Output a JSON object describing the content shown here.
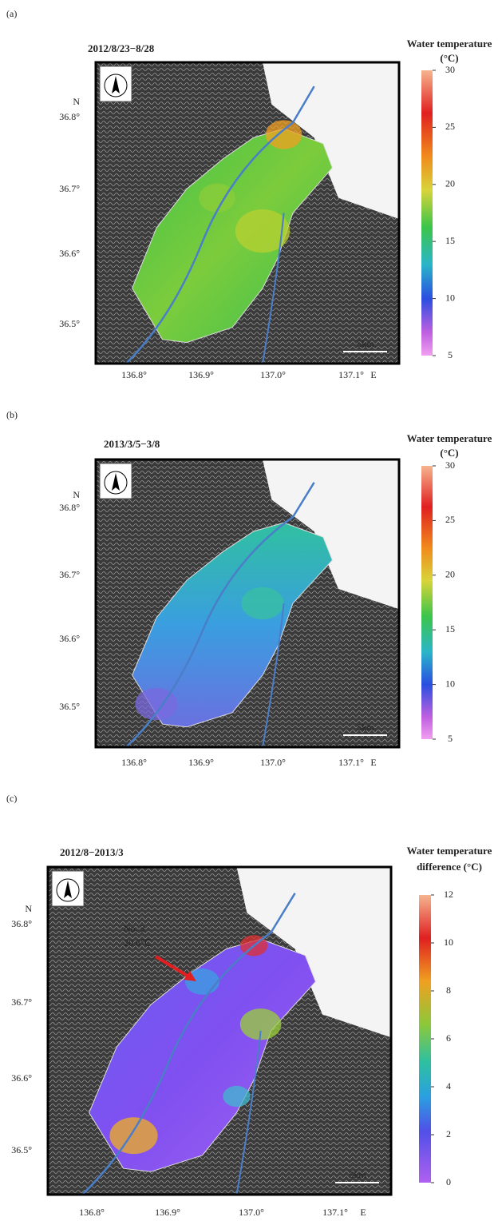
{
  "panels": [
    {
      "label": "(a)",
      "title": "2012/8/23−8/28",
      "colorbar": {
        "title": [
          "Water temperature",
          "(°C)"
        ],
        "range": [
          5,
          30
        ],
        "ticks": [
          5,
          10,
          15,
          20,
          25,
          30
        ]
      },
      "lat_labels": [
        "N",
        "36.8°",
        "36.7°",
        "36.6°",
        "36.5°"
      ],
      "lon_labels": [
        "136.8°",
        "136.9°",
        "137.0°",
        "137.1°",
        "E"
      ],
      "scale": "5km"
    },
    {
      "label": "(b)",
      "title": "2013/3/5−3/8",
      "colorbar": {
        "title": [
          "Water temperature",
          "(°C)"
        ],
        "range": [
          5,
          30
        ],
        "ticks": [
          5,
          10,
          15,
          20,
          25,
          30
        ]
      },
      "lat_labels": [
        "N",
        "36.8°",
        "36.7°",
        "36.6°",
        "36.5°"
      ],
      "lon_labels": [
        "136.8°",
        "136.9°",
        "137.0°",
        "137.1°",
        "E"
      ],
      "scale": "5km"
    },
    {
      "label": "(c)",
      "title": "2012/8−2013/3",
      "colorbar": {
        "title": [
          "Water temperature",
          "difference (°C)"
        ],
        "range": [
          0,
          12
        ],
        "ticks": [
          0,
          2,
          4,
          6,
          8,
          10,
          12
        ]
      },
      "lat_labels": [
        "N",
        "36.8°",
        "36.7°",
        "36.6°",
        "36.5°"
      ],
      "lon_labels": [
        "136.8°",
        "136.9°",
        "137.0°",
        "137.1°",
        "E"
      ],
      "scale": "5km",
      "annotation": [
        "No. 3",
        "20.6℃"
      ]
    }
  ]
}
